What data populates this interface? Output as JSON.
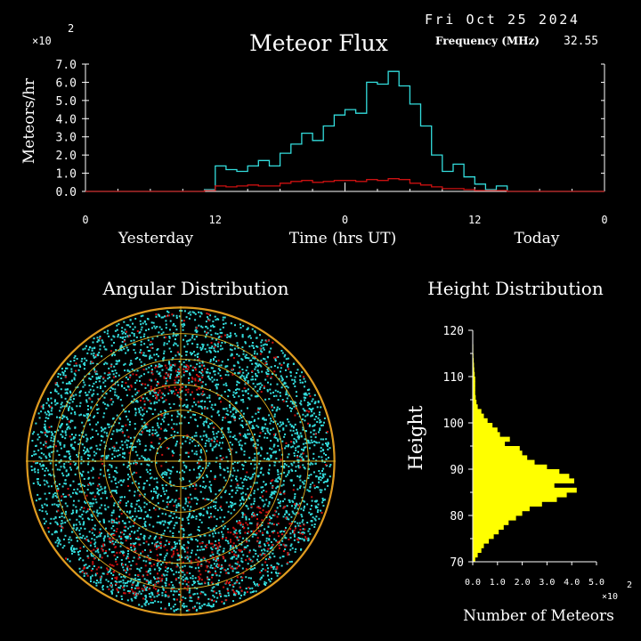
{
  "header": {
    "date": "Fri Oct 25 2024",
    "frequency_label": "Frequency (MHz)",
    "frequency_value": "32.55"
  },
  "colors": {
    "background": "#000000",
    "total": "#33dddd",
    "sporadic": "#cc1111",
    "axis": "#ffffff",
    "height_bars": "#ffff00",
    "rings": "#e0b020"
  },
  "chart_data": [
    {
      "type": "line",
      "title": "Meteor Flux",
      "ylabel": "Meteors/hr",
      "xlabel": "Time (hrs UT)",
      "y_multiplier": "×10",
      "y_multiplier_exp": "2",
      "ylim": [
        0,
        7
      ],
      "yticks": [
        "0.0",
        "1.0",
        "2.0",
        "3.0",
        "4.0",
        "5.0",
        "6.0",
        "7.0"
      ],
      "xticks": [
        "0",
        "12",
        "0",
        "12",
        "0"
      ],
      "xlabels_below": [
        "Yesterday",
        "Today"
      ],
      "x": [
        -24,
        -23,
        -22,
        -21,
        -20,
        -19,
        -18,
        -17,
        -16,
        -15,
        -14,
        -13,
        -12,
        -11,
        -10,
        -9,
        -8,
        -7,
        -6,
        -5,
        -4,
        -3,
        -2,
        -1,
        0,
        1,
        2,
        3,
        4,
        5,
        6,
        7,
        8,
        9,
        10,
        11,
        12,
        13,
        14,
        15,
        16,
        17,
        18,
        19,
        20,
        21,
        22,
        23
      ],
      "series": [
        {
          "color": "#33dddd",
          "values": [
            0,
            0,
            0,
            0,
            0,
            0,
            0,
            0,
            0,
            0,
            0,
            0.1,
            1.4,
            1.2,
            1.1,
            1.4,
            1.7,
            1.4,
            2.1,
            2.6,
            3.2,
            2.8,
            3.6,
            4.2,
            4.5,
            4.3,
            6.0,
            5.9,
            6.6,
            5.8,
            4.8,
            3.6,
            2.0,
            1.1,
            1.5,
            0.8,
            0.4,
            0.1,
            0.3,
            0,
            0,
            0,
            0,
            0,
            0,
            0,
            0,
            0
          ]
        },
        {
          "color": "#cc1111",
          "values": [
            0,
            0,
            0,
            0,
            0,
            0,
            0,
            0,
            0,
            0,
            0,
            0.05,
            0.3,
            0.25,
            0.3,
            0.35,
            0.3,
            0.3,
            0.45,
            0.55,
            0.6,
            0.5,
            0.55,
            0.6,
            0.6,
            0.55,
            0.65,
            0.6,
            0.7,
            0.65,
            0.45,
            0.35,
            0.25,
            0.15,
            0.15,
            0.1,
            0.05,
            0.05,
            0.05,
            0,
            0,
            0,
            0,
            0,
            0,
            0,
            0,
            0
          ]
        }
      ]
    },
    {
      "type": "scatter",
      "title": "Angular Distribution",
      "rings": 6,
      "series": [
        {
          "color": "#33dddd"
        },
        {
          "color": "#cc1111"
        }
      ]
    },
    {
      "type": "bar",
      "orientation": "horizontal",
      "title": "Height Distribution",
      "ylabel": "Height",
      "xlabel": "Number of Meteors",
      "x_multiplier": "×10",
      "x_multiplier_exp": "2",
      "xlim": [
        0,
        5
      ],
      "xticks": [
        "0.0",
        "1.0",
        "2.0",
        "3.0",
        "4.0",
        "5.0"
      ],
      "ylim": [
        70,
        120
      ],
      "yticks": [
        "70",
        "80",
        "90",
        "100",
        "110",
        "120"
      ],
      "heights": [
        71,
        72,
        73,
        74,
        75,
        76,
        77,
        78,
        79,
        80,
        81,
        82,
        83,
        84,
        85,
        86,
        87,
        88,
        89,
        90,
        91,
        92,
        93,
        94,
        95,
        96,
        97,
        98,
        99,
        100,
        101,
        102,
        103,
        104,
        105,
        106,
        107,
        108,
        109,
        110,
        111,
        112,
        113,
        114,
        115,
        116,
        117,
        118,
        119,
        120
      ],
      "values": [
        0.1,
        0.2,
        0.35,
        0.45,
        0.65,
        0.85,
        1.05,
        1.25,
        1.45,
        1.75,
        2.0,
        2.3,
        2.8,
        3.4,
        3.8,
        4.2,
        3.3,
        4.1,
        3.9,
        3.5,
        3.0,
        2.5,
        2.2,
        2.0,
        1.9,
        1.3,
        1.5,
        1.1,
        1.0,
        0.8,
        0.6,
        0.45,
        0.35,
        0.2,
        0.15,
        0.12,
        0.1,
        0.1,
        0.1,
        0.1,
        0.08,
        0.06,
        0.05,
        0.04,
        0.03,
        0.02,
        0.02,
        0.01,
        0.01,
        0
      ]
    }
  ]
}
